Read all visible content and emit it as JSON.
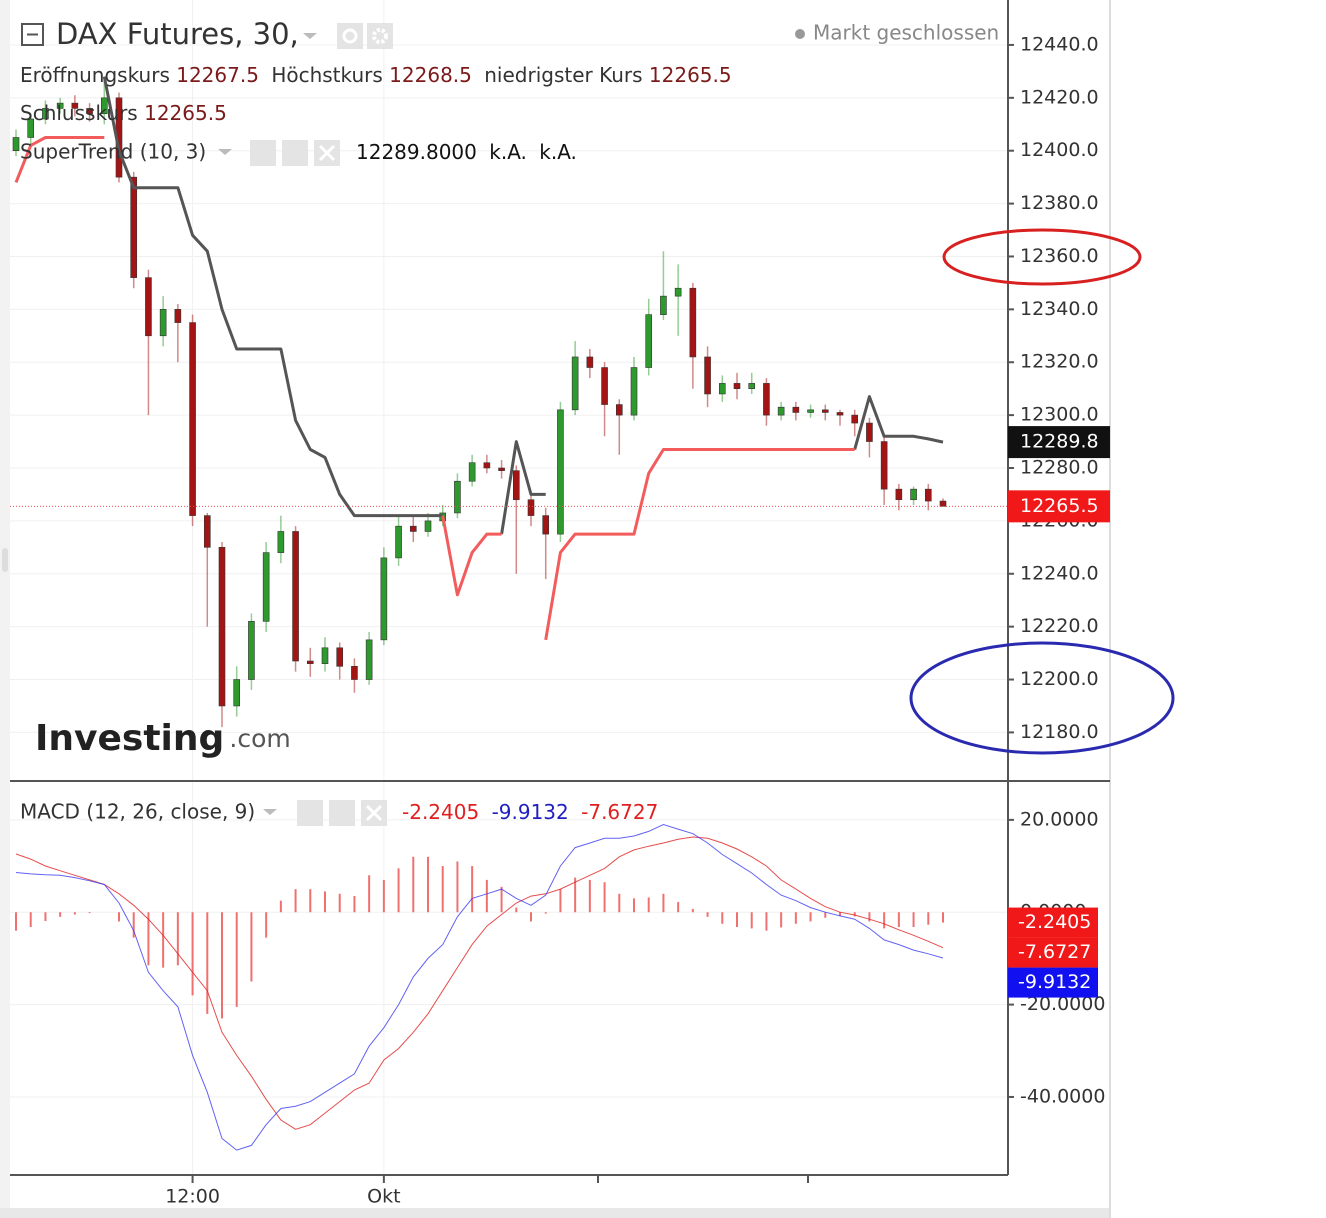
{
  "chart_data": [
    {
      "type": "candlestick",
      "title": "DAX Futures, 30,",
      "status": "Markt geschlossen",
      "ohlc_labels": [
        "Eröffnungskurs",
        "Höchstkurs",
        "niedrigster Kurs",
        "Schlusskurs"
      ],
      "watermark": {
        "brand": "Investing",
        "suffix": ".com"
      },
      "categories": [
        null,
        null,
        null,
        null,
        null,
        null,
        null,
        null,
        null,
        null,
        null,
        null,
        "12:00",
        null,
        null,
        null,
        null,
        null,
        null,
        null,
        null,
        null,
        null,
        null,
        null,
        "Okt",
        null,
        null,
        null,
        null,
        null,
        null,
        null,
        null,
        null,
        null,
        null,
        null,
        null,
        null,
        null,
        null,
        null,
        null,
        null,
        null,
        null,
        null,
        null,
        null,
        null,
        null,
        null,
        null,
        null,
        null,
        null,
        null,
        null,
        null,
        null,
        null,
        null,
        null
      ],
      "open": [
        12400,
        12405,
        12412,
        12416,
        12418,
        12416,
        12414,
        12420,
        12390,
        12352,
        12330,
        12340,
        12335,
        12262,
        12250,
        12190,
        12200,
        12222,
        12248,
        12256,
        12207,
        12206,
        12212,
        12205,
        12200,
        12215,
        12246,
        12258,
        12256,
        12260,
        12263,
        12275,
        12282,
        12280,
        12279,
        12268,
        12262,
        12255,
        12302,
        12322,
        12318,
        12304,
        12300,
        12318,
        12338,
        12345,
        12348,
        12322,
        12308,
        12312,
        12310,
        12312,
        12300,
        12303,
        12301,
        12302,
        12301,
        12300,
        12297,
        12290,
        12272,
        12268,
        12272,
        12267.5
      ],
      "high": [
        12408,
        12414,
        12419,
        12420,
        12421,
        12418,
        12428,
        12422,
        12392,
        12355,
        12345,
        12342,
        12338,
        12263,
        12252,
        12205,
        12225,
        12252,
        12262,
        12258,
        12212,
        12216,
        12214,
        12208,
        12218,
        12250,
        12262,
        12262,
        12263,
        12266,
        12278,
        12285,
        12285,
        12283,
        12281,
        12270,
        12265,
        12305,
        12328,
        12325,
        12320,
        12306,
        12322,
        12344,
        12362,
        12357,
        12350,
        12326,
        12315,
        12316,
        12316,
        12314,
        12305,
        12305,
        12304,
        12304,
        12302,
        12302,
        12299,
        12292,
        12274,
        12273,
        12274,
        12268.5
      ],
      "low": [
        12398,
        12402,
        12410,
        12414,
        12413,
        12411,
        12410,
        12388,
        12348,
        12300,
        12326,
        12320,
        12258,
        12220,
        12182,
        12186,
        12196,
        12218,
        12244,
        12203,
        12201,
        12203,
        12200,
        12195,
        12198,
        12213,
        12243,
        12252,
        12254,
        12258,
        12261,
        12273,
        12278,
        12276,
        12240,
        12258,
        12238,
        12252,
        12300,
        12314,
        12292,
        12285,
        12298,
        12315,
        12336,
        12330,
        12310,
        12303,
        12305,
        12306,
        12308,
        12296,
        12298,
        12298,
        12299,
        12298,
        12296,
        12292,
        12284,
        12266,
        12264,
        12266,
        12264,
        12265.5
      ],
      "close": [
        12405,
        12412,
        12416,
        12418,
        12416,
        12414,
        12420,
        12390,
        12352,
        12330,
        12340,
        12335,
        12262,
        12250,
        12190,
        12200,
        12222,
        12248,
        12256,
        12207,
        12206,
        12212,
        12205,
        12200,
        12215,
        12246,
        12258,
        12256,
        12260,
        12263,
        12275,
        12282,
        12280,
        12279,
        12268,
        12262,
        12255,
        12302,
        12322,
        12318,
        12304,
        12300,
        12318,
        12338,
        12345,
        12348,
        12322,
        12308,
        12312,
        12310,
        12312,
        12300,
        12303,
        12301,
        12302,
        12301,
        12300,
        12297,
        12290,
        12272,
        12268,
        12272,
        12267.5,
        12265.5
      ],
      "up_color": "#2e9a2e",
      "down_color": "#a31515",
      "supertrend": {
        "label": "SuperTrend (10, 3)",
        "value_label": "12289.8000",
        "extra": [
          "k.A.",
          "k.A."
        ],
        "upper_color": "#555555",
        "lower_color": "#f25c5c",
        "upper": [
          null,
          null,
          null,
          null,
          null,
          null,
          12428,
          12400,
          12386,
          12386,
          12386,
          12386,
          12368,
          12362,
          12340,
          12325,
          12325,
          12325,
          12325,
          12298,
          12287,
          12284,
          12270,
          12262,
          12262,
          12262,
          12262,
          12262,
          12262,
          12262,
          null,
          null,
          null,
          12255,
          12290,
          12270,
          12270,
          null,
          null,
          null,
          null,
          null,
          null,
          null,
          null,
          null,
          null,
          null,
          null,
          null,
          null,
          null,
          null,
          null,
          null,
          null,
          null,
          12287,
          12307,
          12292,
          12292,
          12292,
          12291,
          12289.8
        ],
        "lower": [
          12388,
          12402,
          12405,
          12405,
          12405,
          12405,
          12405,
          null,
          null,
          null,
          null,
          null,
          null,
          null,
          null,
          null,
          null,
          null,
          null,
          null,
          null,
          null,
          null,
          null,
          null,
          null,
          null,
          null,
          null,
          12262,
          12232,
          12248,
          12255,
          12255,
          null,
          null,
          12215,
          12248,
          12255,
          12255,
          12255,
          12255,
          12255,
          12278,
          12287,
          12287,
          12287,
          12287,
          12287,
          12287,
          12287,
          12287,
          12287,
          12287,
          12287,
          12287,
          12287,
          12287,
          null,
          null,
          null,
          null,
          null,
          null
        ]
      },
      "ylim": [
        12162,
        12457
      ],
      "yticks": [
        {
          "value": 12180,
          "label": "12180.0"
        },
        {
          "value": 12200,
          "label": "12200.0"
        },
        {
          "value": 12220,
          "label": "12220.0"
        },
        {
          "value": 12240,
          "label": "12240.0"
        },
        {
          "value": 12260,
          "label": "12260.0"
        },
        {
          "value": 12280,
          "label": "12280.0"
        },
        {
          "value": 12300,
          "label": "12300.0"
        },
        {
          "value": 12320,
          "label": "12320.0"
        },
        {
          "value": 12340,
          "label": "12340.0"
        },
        {
          "value": 12360,
          "label": "12360.0"
        },
        {
          "value": 12380,
          "label": "12380.0"
        },
        {
          "value": 12400,
          "label": "12400.0"
        },
        {
          "value": 12420,
          "label": "12420.0"
        },
        {
          "value": 12440,
          "label": "12440.0"
        }
      ]
    },
    {
      "type": "macd",
      "label": "MACD (12, 26, close, 9)",
      "histogram": {
        "color": "#f07070",
        "values": [
          -4.0,
          -3.2,
          -1.9,
          -1.0,
          -0.5,
          -0.2,
          0,
          -2,
          -5.5,
          -11.5,
          -12,
          -11.5,
          -18,
          -22,
          -23,
          -20.5,
          -15,
          -5.5,
          2.5,
          5,
          5,
          4.5,
          4,
          3.5,
          8,
          7,
          9.5,
          12,
          12,
          10,
          11,
          10,
          7,
          5.5,
          1,
          -2,
          -0.3,
          5,
          7.5,
          7,
          6.5,
          4,
          3,
          3.2,
          4,
          2.2,
          0.7,
          -1,
          -2.5,
          -3.2,
          -3.5,
          -4,
          -3.3,
          -2.5,
          -2,
          -1.2,
          -0.8,
          -0.9,
          -2,
          -3.5,
          -3.2,
          -3.2,
          -2.7,
          -2.2405
        ]
      },
      "macd": {
        "color": "#3b3bf0",
        "values": [
          8.6,
          8.3,
          8.1,
          8.0,
          7.5,
          6.8,
          6.0,
          2.0,
          -4,
          -13,
          -17,
          -20.5,
          -31,
          -39,
          -49,
          -51.5,
          -50.5,
          -46,
          -42.5,
          -42,
          -41,
          -39,
          -37,
          -35,
          -29,
          -25,
          -20,
          -14,
          -10,
          -7,
          -1,
          3,
          4,
          5,
          3,
          1.5,
          3.7,
          10,
          14,
          15,
          16,
          16,
          16.5,
          17.5,
          19,
          18,
          17,
          15,
          12.5,
          10.5,
          8.5,
          6,
          3.7,
          2.5,
          1,
          0,
          -0.8,
          -1.5,
          -3.5,
          -6,
          -7,
          -8.2,
          -9,
          -9.9132
        ]
      },
      "signal": {
        "color": "#e02020",
        "values": [
          12.6,
          11.5,
          10,
          9.0,
          8.0,
          7.0,
          6.0,
          4.0,
          1.5,
          -1.5,
          -5,
          -9,
          -13,
          -17,
          -26,
          -31,
          -35.5,
          -40.5,
          -45,
          -47,
          -46,
          -43.5,
          -41,
          -38.5,
          -37,
          -32,
          -29.5,
          -26,
          -22,
          -17,
          -12,
          -7,
          -3,
          -0.5,
          2,
          3.5,
          4,
          5,
          6.5,
          8,
          9.5,
          12,
          13.5,
          14.3,
          15,
          15.8,
          16.3,
          16,
          15,
          13.7,
          12,
          10,
          7,
          5,
          3,
          1.2,
          0,
          -0.6,
          -1.5,
          -2.5,
          -3.8,
          -5,
          -6.3,
          -7.6727
        ]
      },
      "ylim": [
        -56.9,
        28.2
      ],
      "yticks": [
        {
          "value": 20,
          "label": "20.0000"
        },
        {
          "value": 0,
          "label": "0.0000"
        },
        {
          "value": -20,
          "label": "-20.0000"
        },
        {
          "value": -40,
          "label": "-40.0000"
        }
      ]
    }
  ]
}
